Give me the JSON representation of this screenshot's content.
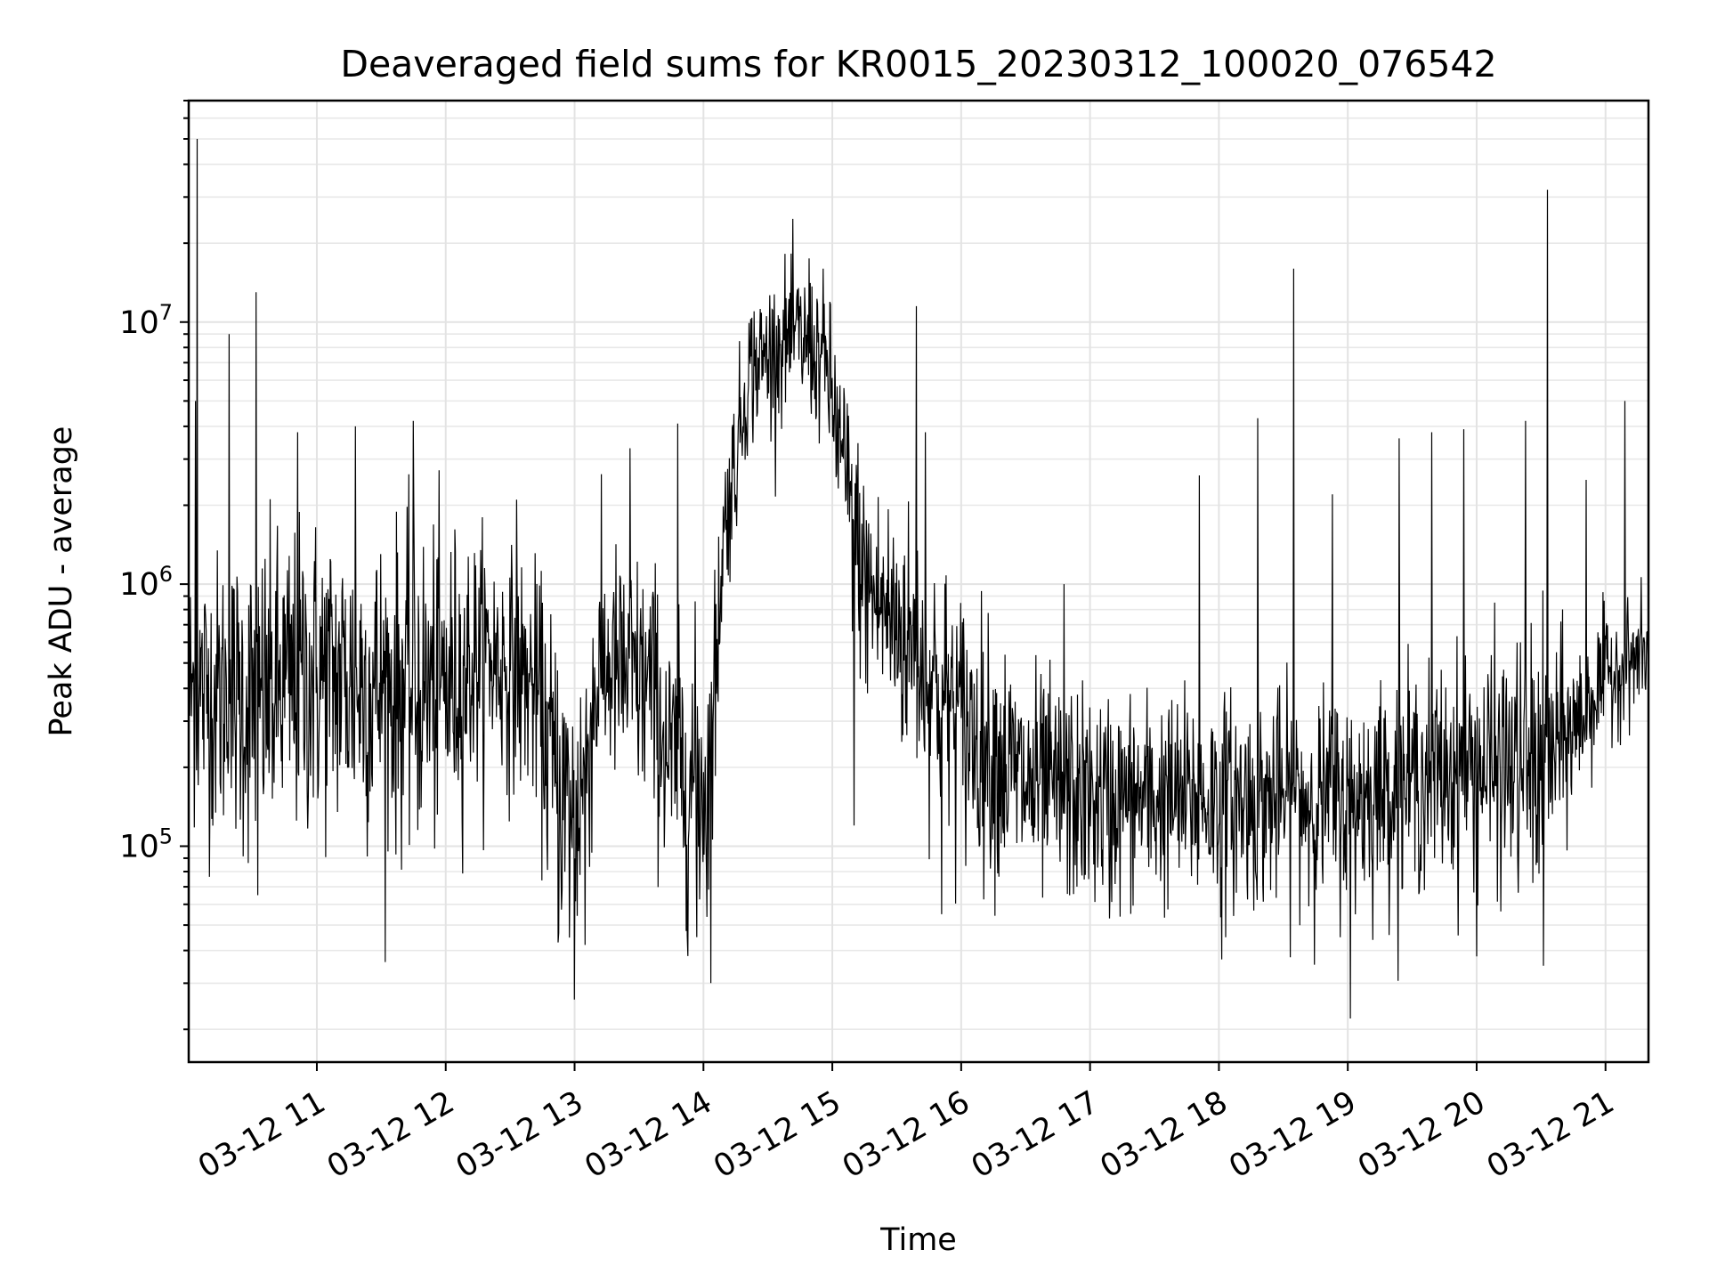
{
  "chart_data": {
    "type": "line",
    "title": "Deaveraged field sums for KR0015_20230312_100020_076542",
    "xlabel": "Time",
    "ylabel": "Peak ADU - average",
    "x_axis": {
      "kind": "datetime",
      "start": "2023-03-12T10:00:20",
      "end": "2023-03-12T21:20:00",
      "tick_labels": [
        "03-12 11",
        "03-12 12",
        "03-12 13",
        "03-12 14",
        "03-12 15",
        "03-12 16",
        "03-12 17",
        "03-12 18",
        "03-12 19",
        "03-12 20",
        "03-12 21"
      ],
      "tick_hours": [
        11,
        12,
        13,
        14,
        15,
        16,
        17,
        18,
        19,
        20,
        21
      ],
      "tick_label_rotation_deg": -30
    },
    "y_axis": {
      "scale": "log",
      "ylim": [
        15000,
        70000000
      ],
      "major_ticks": [
        100000,
        1000000,
        10000000
      ],
      "tick_labels": [
        {
          "base": "10",
          "exp": "5"
        },
        {
          "base": "10",
          "exp": "6"
        },
        {
          "base": "10",
          "exp": "7"
        }
      ]
    },
    "grid": true,
    "series": [
      {
        "color": "#000000",
        "envelope": [
          {
            "hour": 10.0,
            "median": 400000,
            "spread_dex": 0.25
          },
          {
            "hour": 10.5,
            "median": 350000,
            "spread_dex": 0.3
          },
          {
            "hour": 11.0,
            "median": 450000,
            "spread_dex": 0.3
          },
          {
            "hour": 11.5,
            "median": 400000,
            "spread_dex": 0.3
          },
          {
            "hour": 12.0,
            "median": 400000,
            "spread_dex": 0.3
          },
          {
            "hour": 12.3,
            "median": 550000,
            "spread_dex": 0.22
          },
          {
            "hour": 12.7,
            "median": 400000,
            "spread_dex": 0.22
          },
          {
            "hour": 12.85,
            "median": 180000,
            "spread_dex": 0.3
          },
          {
            "hour": 13.0,
            "median": 120000,
            "spread_dex": 0.3
          },
          {
            "hour": 13.2,
            "median": 500000,
            "spread_dex": 0.22
          },
          {
            "hour": 13.6,
            "median": 400000,
            "spread_dex": 0.25
          },
          {
            "hour": 13.75,
            "median": 200000,
            "spread_dex": 0.25
          },
          {
            "hour": 14.05,
            "median": 170000,
            "spread_dex": 0.3
          },
          {
            "hour": 14.15,
            "median": 1500000,
            "spread_dex": 0.15
          },
          {
            "hour": 14.25,
            "median": 3000000,
            "spread_dex": 0.15
          },
          {
            "hour": 14.35,
            "median": 6500000,
            "spread_dex": 0.14
          },
          {
            "hour": 14.7,
            "median": 9000000,
            "spread_dex": 0.14
          },
          {
            "hour": 14.95,
            "median": 7000000,
            "spread_dex": 0.15
          },
          {
            "hour": 15.1,
            "median": 2500000,
            "spread_dex": 0.2
          },
          {
            "hour": 15.25,
            "median": 1000000,
            "spread_dex": 0.22
          },
          {
            "hour": 15.6,
            "median": 600000,
            "spread_dex": 0.25
          },
          {
            "hour": 16.0,
            "median": 300000,
            "spread_dex": 0.25
          },
          {
            "hour": 16.5,
            "median": 170000,
            "spread_dex": 0.22
          },
          {
            "hour": 17.0,
            "median": 150000,
            "spread_dex": 0.2
          },
          {
            "hour": 18.0,
            "median": 150000,
            "spread_dex": 0.2
          },
          {
            "hour": 19.0,
            "median": 150000,
            "spread_dex": 0.2
          },
          {
            "hour": 19.5,
            "median": 180000,
            "spread_dex": 0.2
          },
          {
            "hour": 20.0,
            "median": 200000,
            "spread_dex": 0.22
          },
          {
            "hour": 20.5,
            "median": 200000,
            "spread_dex": 0.25
          },
          {
            "hour": 20.8,
            "median": 300000,
            "spread_dex": 0.15
          },
          {
            "hour": 21.0,
            "median": 450000,
            "spread_dex": 0.12
          },
          {
            "hour": 21.33,
            "median": 550000,
            "spread_dex": 0.1
          }
        ],
        "spikes": [
          {
            "hour": 10.07,
            "value": 50000000
          },
          {
            "hour": 10.06,
            "value": 5000000
          },
          {
            "hour": 10.32,
            "value": 9000000
          },
          {
            "hour": 10.53,
            "value": 13000000
          },
          {
            "hour": 10.54,
            "value": 65000
          },
          {
            "hour": 10.85,
            "value": 3800000
          },
          {
            "hour": 11.3,
            "value": 4000000
          },
          {
            "hour": 11.75,
            "value": 4200000
          },
          {
            "hour": 12.55,
            "value": 2100000
          },
          {
            "hour": 13.0,
            "value": 26000
          },
          {
            "hour": 13.08,
            "value": 42000
          },
          {
            "hour": 13.43,
            "value": 3300000
          },
          {
            "hour": 13.8,
            "value": 4100000
          },
          {
            "hour": 13.95,
            "value": 45000
          },
          {
            "hour": 14.82,
            "value": 17500000
          },
          {
            "hour": 15.17,
            "value": 120000
          },
          {
            "hour": 15.65,
            "value": 11500000
          },
          {
            "hour": 15.72,
            "value": 3800000
          },
          {
            "hour": 15.85,
            "value": 55000
          },
          {
            "hour": 16.8,
            "value": 1000000
          },
          {
            "hour": 17.15,
            "value": 53000
          },
          {
            "hour": 17.85,
            "value": 2600000
          },
          {
            "hour": 18.3,
            "value": 4300000
          },
          {
            "hour": 18.02,
            "value": 37000
          },
          {
            "hour": 18.58,
            "value": 16000000
          },
          {
            "hour": 19.02,
            "value": 22000
          },
          {
            "hour": 18.88,
            "value": 2200000
          },
          {
            "hour": 19.4,
            "value": 3600000
          },
          {
            "hour": 19.65,
            "value": 3800000
          },
          {
            "hour": 19.9,
            "value": 3900000
          },
          {
            "hour": 20.38,
            "value": 4200000
          },
          {
            "hour": 20.55,
            "value": 32000000
          },
          {
            "hour": 20.52,
            "value": 35000
          },
          {
            "hour": 20.85,
            "value": 2500000
          },
          {
            "hour": 21.15,
            "value": 5000000
          },
          {
            "hour": 20.0,
            "value": 38000
          }
        ]
      }
    ]
  }
}
